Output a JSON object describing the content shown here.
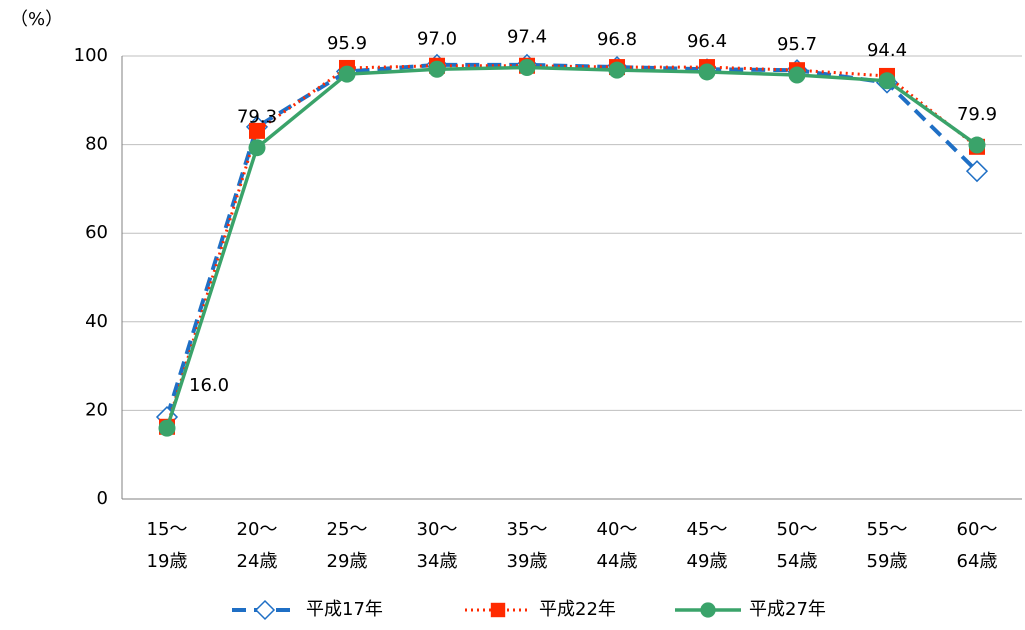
{
  "chart_data": {
    "type": "line",
    "y_label": "（%）",
    "categories": [
      [
        "15～",
        "19歳"
      ],
      [
        "20～",
        "24歳"
      ],
      [
        "25～",
        "29歳"
      ],
      [
        "30～",
        "34歳"
      ],
      [
        "35～",
        "39歳"
      ],
      [
        "40～",
        "44歳"
      ],
      [
        "45～",
        "49歳"
      ],
      [
        "50～",
        "54歳"
      ],
      [
        "55～",
        "59歳"
      ],
      [
        "60～",
        "64歳"
      ]
    ],
    "series": [
      {
        "name": "平成17年",
        "color": "#1f6fc5",
        "dash": "dashed",
        "marker": "diamond",
        "values": [
          18.5,
          84.0,
          96.5,
          98.0,
          98.0,
          97.5,
          97.0,
          96.8,
          94.0,
          74.0
        ]
      },
      {
        "name": "平成22年",
        "color": "#ff2a00",
        "dash": "dotted",
        "marker": "square",
        "values": [
          16.3,
          83.1,
          97.3,
          97.8,
          97.8,
          97.5,
          97.5,
          96.8,
          95.5,
          79.5
        ]
      },
      {
        "name": "平成27年",
        "color": "#3aa36a",
        "dash": "solid",
        "marker": "circle",
        "values": [
          16.0,
          79.3,
          95.9,
          97.0,
          97.4,
          96.8,
          96.4,
          95.7,
          94.4,
          79.9
        ],
        "value_labels": [
          "16.0",
          "79.3",
          "95.9",
          "97.0",
          "97.4",
          "96.8",
          "96.4",
          "95.7",
          "94.4",
          "79.9"
        ]
      }
    ],
    "ylim": [
      0,
      100
    ],
    "yticks": [
      0,
      20,
      40,
      60,
      80,
      100
    ],
    "grid": true,
    "legend": "bottom"
  }
}
